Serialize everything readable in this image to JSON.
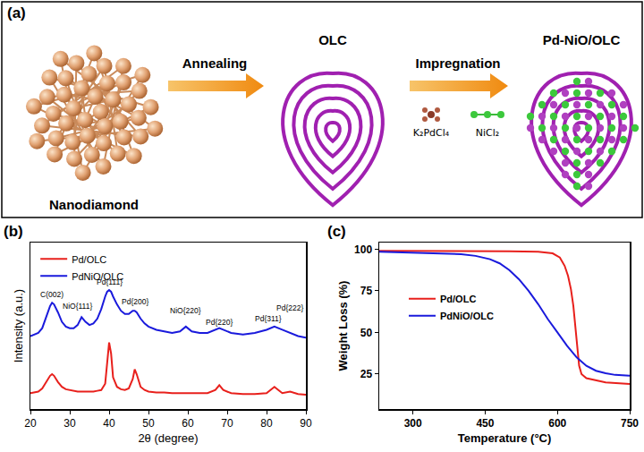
{
  "diagram": {
    "panel": "(a)",
    "nodes": [
      {
        "label": "Nanodiamond"
      },
      {
        "label": "OLC"
      },
      {
        "label": "Pd-NiO/OLC"
      }
    ],
    "arrows": [
      {
        "label": "Annealing"
      },
      {
        "label": "Impregnation"
      }
    ],
    "reagents": [
      {
        "label": "K₂PdCl₄"
      },
      {
        "label": "NiCl₂"
      }
    ]
  },
  "chart_data": [
    {
      "type": "line",
      "panel": "(b)",
      "x": [
        20,
        21,
        22,
        23,
        24,
        25,
        25.5,
        26,
        27,
        28,
        29,
        30,
        31,
        32,
        33,
        34,
        35,
        36,
        37,
        38,
        39,
        39.5,
        40,
        40.5,
        41,
        42,
        43,
        44,
        45,
        46,
        46.5,
        47,
        48,
        49,
        50,
        52,
        54,
        56,
        58,
        59.5,
        61,
        63,
        65,
        67,
        68,
        69,
        71,
        74,
        77,
        80,
        82,
        84,
        86,
        88,
        90
      ],
      "series": [
        {
          "name": "Pd/OLC",
          "color": "#e8201c",
          "values": [
            10,
            10.5,
            11,
            13,
            17,
            21,
            22,
            21,
            17,
            14,
            12.5,
            12,
            11.5,
            11,
            11,
            11,
            11,
            11,
            11.5,
            12,
            16,
            28,
            42,
            35,
            20,
            14,
            12.5,
            12,
            13,
            19,
            25,
            22,
            14,
            12,
            11,
            10.5,
            10.5,
            10,
            10,
            10,
            10,
            10,
            10,
            12,
            15,
            12,
            10,
            9.5,
            9.5,
            10,
            14,
            10,
            11,
            9.5,
            9
          ]
        },
        {
          "name": "PdNiO/OLC",
          "color": "#1a1adc",
          "values": [
            46,
            47,
            48,
            51,
            58,
            65,
            67,
            66,
            61,
            55,
            52,
            51,
            51,
            53,
            58,
            55,
            53,
            54,
            57,
            63,
            71,
            74,
            75,
            74,
            71,
            66,
            62,
            60,
            60,
            62,
            62,
            61,
            57,
            54,
            52,
            50,
            49,
            48,
            49,
            52,
            49,
            48,
            48,
            50,
            51,
            50,
            48,
            47,
            48,
            50,
            52,
            50,
            48,
            46,
            45
          ]
        }
      ],
      "xlabel": "2θ (degree)",
      "ylabel": "Intensity (a.u.)",
      "xlim": [
        20,
        90
      ],
      "xticks": [
        20,
        30,
        40,
        50,
        60,
        70,
        80,
        90
      ],
      "ylim": [
        0,
        105
      ],
      "tick_labels": "x",
      "legend": "top left",
      "grid": false,
      "annotations": [
        {
          "text": "C(002)",
          "x": 25.5,
          "y": 72
        },
        {
          "text": "NiO{111}",
          "x": 32,
          "y": 65
        },
        {
          "text": "Pd{111}",
          "x": 40,
          "y": 80
        },
        {
          "text": "Pd{200}",
          "x": 46.5,
          "y": 68
        },
        {
          "text": "NiO{220}",
          "x": 59.5,
          "y": 62
        },
        {
          "text": "Pd{220}",
          "x": 68,
          "y": 55
        },
        {
          "text": "Pd{311}",
          "x": 80.5,
          "y": 57
        },
        {
          "text": "Pd{222}",
          "x": 86,
          "y": 64
        }
      ]
    },
    {
      "type": "line",
      "panel": "(c)",
      "series": [
        {
          "name": "Pd/OLC",
          "color": "#e8201c",
          "x": [
            230,
            300,
            400,
            500,
            560,
            590,
            605,
            615,
            622,
            628,
            633,
            637,
            641,
            645,
            650,
            660,
            700,
            750
          ],
          "values": [
            99,
            99,
            99,
            98.8,
            98.5,
            97.5,
            95,
            90,
            84,
            76,
            66,
            55,
            42,
            30,
            25,
            22.5,
            20,
            19
          ]
        },
        {
          "name": "PdNiO/OLC",
          "color": "#1a1adc",
          "x": [
            230,
            300,
            350,
            400,
            430,
            460,
            480,
            500,
            520,
            540,
            560,
            580,
            600,
            620,
            640,
            660,
            680,
            700,
            720,
            750
          ],
          "values": [
            98.5,
            98,
            97.7,
            97,
            96,
            94,
            91.5,
            87.5,
            82,
            75,
            67,
            58,
            50,
            42,
            35,
            30,
            27,
            25.5,
            24.5,
            24
          ]
        }
      ],
      "xlabel": "Temperature (°C)",
      "ylabel": "Weight Loss (%)",
      "xlim": [
        230,
        750
      ],
      "xticks": [
        300,
        450,
        600,
        750
      ],
      "ylim": [
        4,
        104
      ],
      "yticks": [
        25,
        50,
        75,
        100
      ],
      "legend": "left",
      "grid": false
    }
  ]
}
